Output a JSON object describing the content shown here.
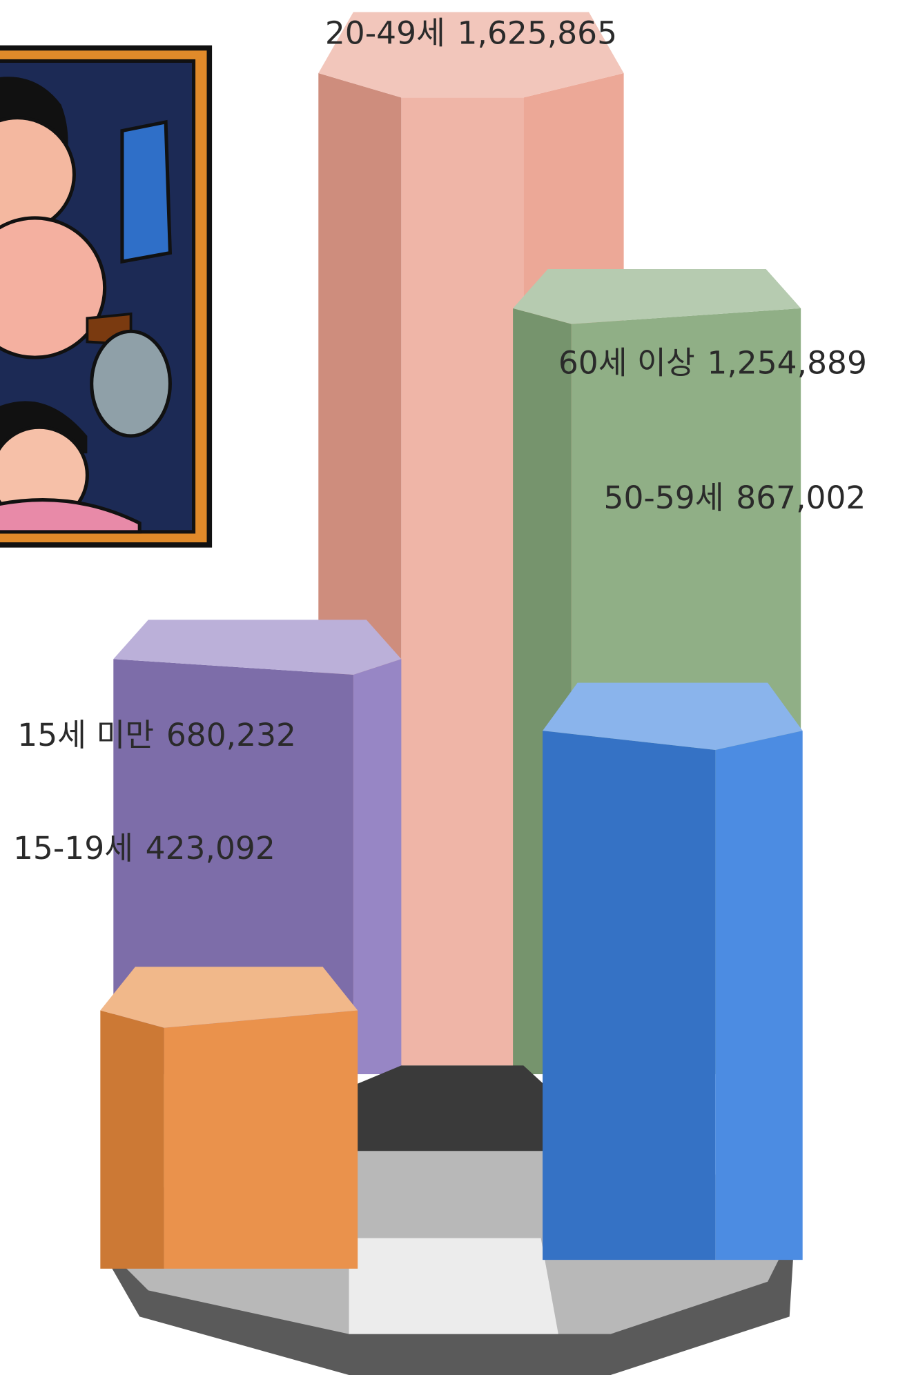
{
  "chart_data": {
    "type": "prism",
    "categories": [
      "20-49세",
      "60세 이상",
      "50-59세",
      "15세 미만",
      "15-19세"
    ],
    "values": [
      1625865,
      1254889,
      867002,
      680232,
      423092
    ],
    "value_labels": [
      "1,625,865",
      "1,254,889",
      "867,002",
      "680,232",
      "423,092"
    ],
    "colors": [
      "#eaa08e",
      "#86a87c",
      "#3c82e0",
      "#8e7cc0",
      "#e8893c"
    ]
  }
}
